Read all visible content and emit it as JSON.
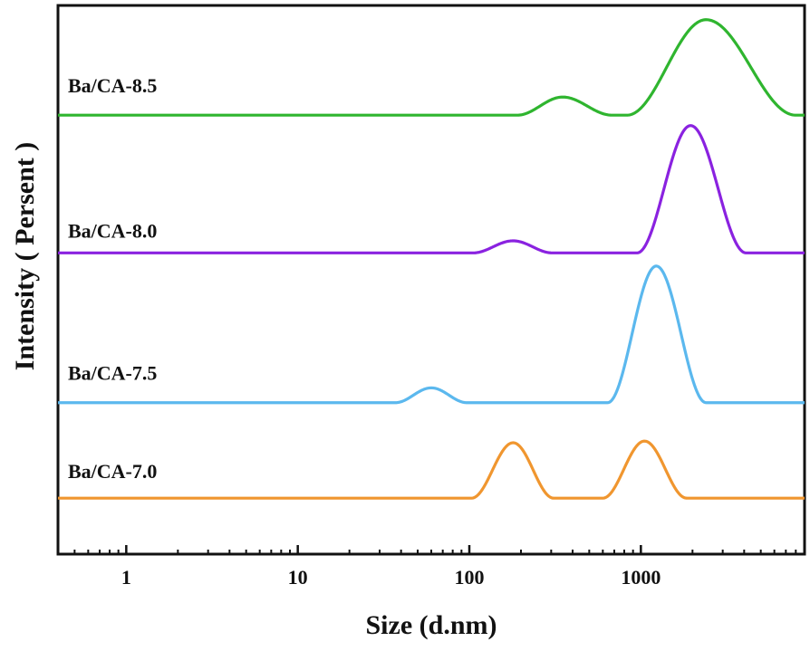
{
  "chart_data": {
    "type": "line",
    "title": "",
    "xlabel": "Size (d.nm)",
    "ylabel": "Intensity ( Persent )",
    "xscale": "log",
    "xlim": [
      0.4,
      9000
    ],
    "xticks": [
      1,
      10,
      100,
      1000
    ],
    "xtick_labels": [
      "1",
      "10",
      "100",
      "1000"
    ],
    "yticks": [],
    "grid": false,
    "legend": "inline labels beside each curve",
    "series": [
      {
        "name": "Ba/CA-8.5",
        "color": "#2fb52f",
        "offset": 0.8,
        "peaks": [
          {
            "center": 350,
            "height": 0.033,
            "lo": 190,
            "hi": 680
          },
          {
            "center": 2400,
            "height": 0.174,
            "lo": 830,
            "hi": 8000
          }
        ]
      },
      {
        "name": "Ba/CA-8.0",
        "color": "#8a22e0",
        "offset": 0.549,
        "peaks": [
          {
            "center": 180,
            "height": 0.022,
            "lo": 105,
            "hi": 305
          },
          {
            "center": 1950,
            "height": 0.232,
            "lo": 950,
            "hi": 4100
          }
        ]
      },
      {
        "name": "Ba/CA-7.5",
        "color": "#5bb8ee",
        "offset": 0.276,
        "peaks": [
          {
            "center": 60,
            "height": 0.027,
            "lo": 37,
            "hi": 97
          },
          {
            "center": 1230,
            "height": 0.249,
            "lo": 640,
            "hi": 2400
          }
        ]
      },
      {
        "name": "Ba/CA-7.0",
        "color": "#f0962f",
        "offset": 0.102,
        "peaks": [
          {
            "center": 180,
            "height": 0.101,
            "lo": 103,
            "hi": 310
          },
          {
            "center": 1050,
            "height": 0.104,
            "lo": 600,
            "hi": 1850
          }
        ]
      }
    ]
  }
}
